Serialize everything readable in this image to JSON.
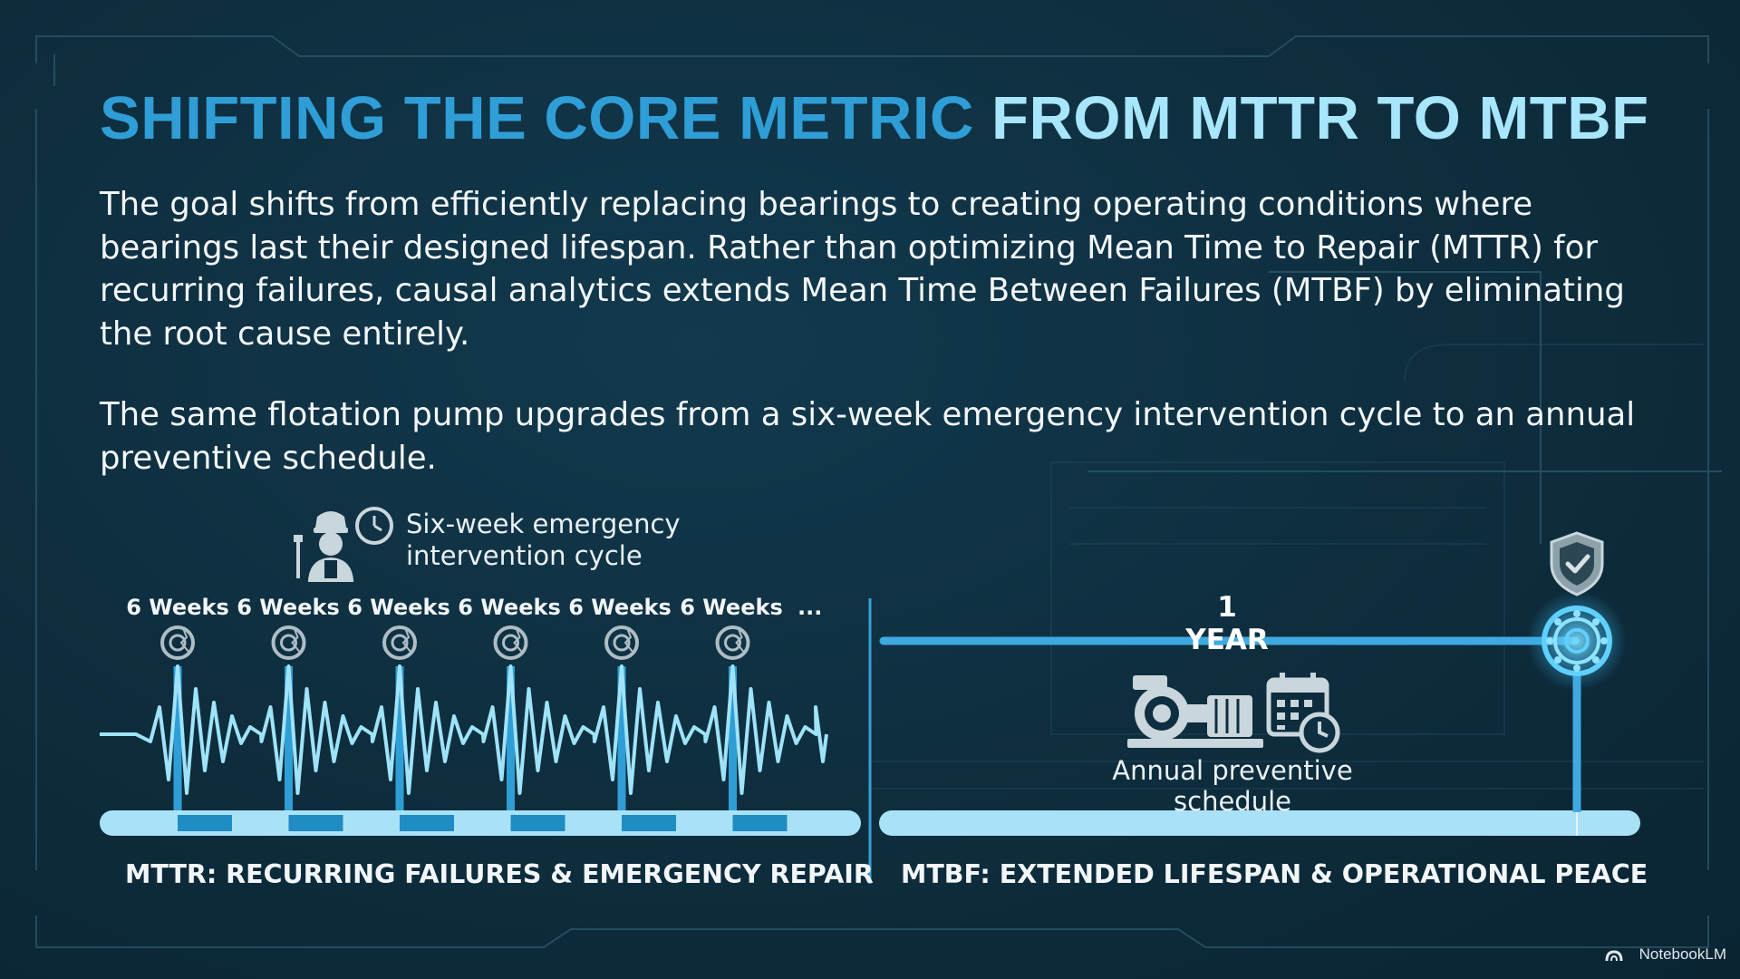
{
  "title": {
    "part1": "SHIFTING THE CORE METRIC",
    "part2": "FROM MTTR TO MTBF"
  },
  "paragraphs": [
    "The goal shifts from efficiently replacing bearings to creating operating conditions where bearings last their designed lifespan. Rather than optimizing Mean Time to Repair (MTTR) for recurring failures, causal analytics extends Mean Time Between Failures (MTBF) by eliminating the root cause entirely.",
    "The same flotation pump upgrades from a six-week emergency intervention cycle to an annual preventive schedule."
  ],
  "mttr": {
    "cycle_label_line1": "Six-week emergency",
    "cycle_label_line2": "intervention cycle",
    "intervals": [
      "6 Weeks",
      "6 Weeks",
      "6 Weeks",
      "6 Weeks",
      "6 Weeks",
      "6 Weeks"
    ],
    "continuation": "...",
    "caption": "MTTR: RECURRING FAILURES & EMERGENCY REPAIR"
  },
  "mtbf": {
    "interval": "1 YEAR",
    "schedule_label": "Annual preventive schedule",
    "caption": "MTBF: EXTENDED LIFESPAN & OPERATIONAL PEACE"
  },
  "branding": "NotebookLM",
  "colors": {
    "background": "#0e2f40",
    "title_blue": "#2f9ed6",
    "title_light": "#a8e6fb",
    "accent": "#4fb6e6",
    "bar_light": "#a9e2f7",
    "bar_dark": "#1f8cc4",
    "glow": "#5fd0ff"
  },
  "icons": [
    "technician-icon",
    "clock-icon",
    "bearing-icon",
    "shield-check-icon",
    "pump-icon",
    "calendar-clock-icon",
    "notebooklm-logo-icon"
  ]
}
